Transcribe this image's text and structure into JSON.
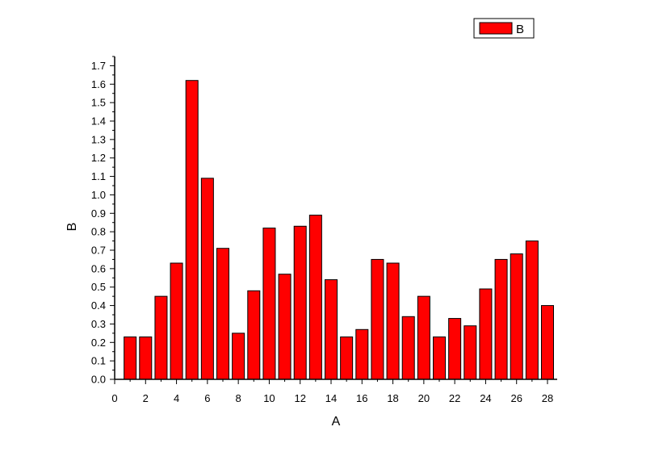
{
  "chart_data": {
    "type": "bar",
    "x": [
      1,
      2,
      3,
      4,
      5,
      6,
      7,
      8,
      9,
      10,
      11,
      12,
      13,
      14,
      15,
      16,
      17,
      18,
      19,
      20,
      21,
      22,
      23,
      24,
      25,
      26,
      27,
      28
    ],
    "values": [
      0.23,
      0.23,
      0.45,
      0.63,
      1.62,
      1.09,
      0.71,
      0.25,
      0.48,
      0.82,
      0.57,
      0.83,
      0.89,
      0.54,
      0.23,
      0.27,
      0.65,
      0.63,
      0.34,
      0.45,
      0.23,
      0.33,
      0.29,
      0.49,
      0.65,
      0.68,
      0.75,
      0.4
    ],
    "series": [
      {
        "name": "B",
        "color": "#ff0000"
      }
    ],
    "xlabel": "A",
    "ylabel": "B",
    "xlim": [
      0,
      28.5
    ],
    "ylim": [
      0,
      1.75
    ],
    "x_ticks": [
      "0",
      "2",
      "4",
      "6",
      "8",
      "10",
      "12",
      "14",
      "16",
      "18",
      "20",
      "22",
      "24",
      "26",
      "28"
    ],
    "y_ticks": [
      "0.0",
      "0.1",
      "0.2",
      "0.3",
      "0.4",
      "0.5",
      "0.6",
      "0.7",
      "0.8",
      "0.9",
      "1.0",
      "1.1",
      "1.2",
      "1.3",
      "1.4",
      "1.5",
      "1.6",
      "1.7"
    ],
    "grid": false,
    "legend_position": "top-right",
    "bar_color": "#ff0000",
    "bar_edge_color": "#000000"
  }
}
